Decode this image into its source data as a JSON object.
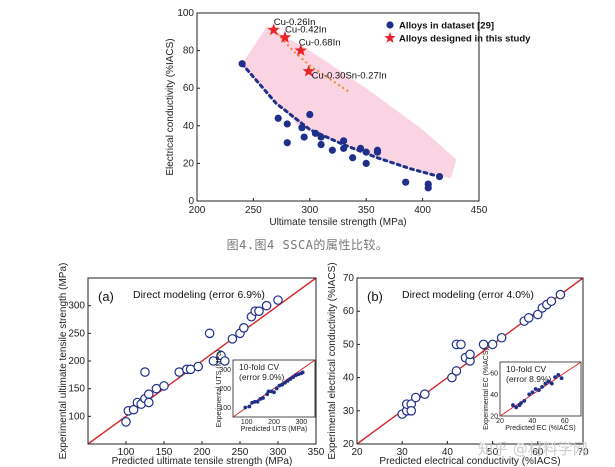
{
  "caption": "图4.图4 SSCA的属性比较。",
  "watermark": "知乎 @材料学网",
  "colors": {
    "dataset": "#1f2f8a",
    "designed": "#e8232a",
    "band": "#f9cfe0",
    "trend_top": "#f08a2a",
    "fit_line": "#d9262b",
    "open_marker": "#1f2f8a"
  },
  "chart_data": [
    {
      "id": "top",
      "type": "scatter",
      "xlabel": "Ultimate tensile strength (MPa)",
      "ylabel": "Electrical conductivity (%IACS)",
      "xlim": [
        200,
        450
      ],
      "ylim": [
        0,
        100
      ],
      "xticks": [
        200,
        250,
        300,
        350,
        400,
        450
      ],
      "yticks": [
        0,
        20,
        40,
        60,
        80,
        100
      ],
      "legend": {
        "placement": "top-right",
        "entries": [
          "Alloys in dataset [29]",
          "Alloys designed in this study"
        ]
      },
      "series": [
        {
          "name": "Alloys in dataset [29]",
          "marker": "filled-circle",
          "points": [
            [
              240,
              73
            ],
            [
              272,
              44
            ],
            [
              280,
              41
            ],
            [
              280,
              31
            ],
            [
              293,
              39
            ],
            [
              295,
              34
            ],
            [
              300,
              46
            ],
            [
              305,
              36
            ],
            [
              310,
              30
            ],
            [
              310,
              34
            ],
            [
              320,
              27
            ],
            [
              330,
              32
            ],
            [
              330,
              28
            ],
            [
              338,
              23
            ],
            [
              345,
              28
            ],
            [
              350,
              26
            ],
            [
              350,
              20
            ],
            [
              360,
              27
            ],
            [
              360,
              26
            ],
            [
              385,
              10
            ],
            [
              405,
              9
            ],
            [
              405,
              7
            ],
            [
              415,
              13
            ]
          ]
        },
        {
          "name": "Alloys designed in this study",
          "marker": "star",
          "points": [
            [
              268,
              91
            ],
            [
              278,
              87
            ],
            [
              292,
              80
            ],
            [
              299,
              69
            ]
          ]
        }
      ],
      "annotations": [
        {
          "text": "Cu-0.26In",
          "point": [
            268,
            91
          ]
        },
        {
          "text": "Cu-0.42In",
          "point": [
            278,
            87
          ]
        },
        {
          "text": "Cu-0.68In",
          "point": [
            292,
            80
          ]
        },
        {
          "text": "Cu-0.30Sn-0.27In",
          "point": [
            299,
            69
          ]
        }
      ],
      "band": {
        "upper": [
          [
            262,
            93
          ],
          [
            300,
            80
          ],
          [
            350,
            60
          ],
          [
            400,
            38
          ],
          [
            430,
            22
          ]
        ],
        "lower": [
          [
            240,
            73
          ],
          [
            290,
            40
          ],
          [
            350,
            25
          ],
          [
            400,
            16
          ],
          [
            425,
            12
          ]
        ]
      },
      "trend_dataset": [
        [
          240,
          73
        ],
        [
          270,
          52
        ],
        [
          300,
          38
        ],
        [
          330,
          30
        ],
        [
          360,
          23
        ],
        [
          390,
          17
        ],
        [
          415,
          13
        ]
      ],
      "trend_designed": [
        [
          268,
          91
        ],
        [
          285,
          80
        ],
        [
          300,
          72
        ],
        [
          320,
          64
        ],
        [
          335,
          58
        ]
      ]
    },
    {
      "id": "a",
      "panel_label": "(a)",
      "type": "scatter",
      "title": "Direct modeling (error 6.9%)",
      "xlabel": "Predicted ultimate tensile strength (MPa)",
      "ylabel": "Experimental ultimate tensile strength (MPa)",
      "xlim": [
        50,
        350
      ],
      "ylim": [
        50,
        350
      ],
      "xticks": [
        100,
        150,
        200,
        250,
        300,
        350
      ],
      "yticks": [
        100,
        150,
        200,
        250,
        300
      ],
      "points": [
        [
          100,
          90
        ],
        [
          103,
          110
        ],
        [
          110,
          112
        ],
        [
          115,
          125
        ],
        [
          120,
          122
        ],
        [
          125,
          132
        ],
        [
          125,
          180
        ],
        [
          130,
          140
        ],
        [
          130,
          125
        ],
        [
          140,
          150
        ],
        [
          150,
          155
        ],
        [
          170,
          180
        ],
        [
          180,
          185
        ],
        [
          185,
          185
        ],
        [
          195,
          190
        ],
        [
          210,
          250
        ],
        [
          215,
          200
        ],
        [
          225,
          210
        ],
        [
          230,
          200
        ],
        [
          240,
          240
        ],
        [
          250,
          250
        ],
        [
          255,
          260
        ],
        [
          265,
          280
        ],
        [
          270,
          290
        ],
        [
          275,
          290
        ],
        [
          285,
          300
        ],
        [
          300,
          310
        ]
      ],
      "inset": {
        "title": [
          "10-fold CV",
          "(error 9.0%)"
        ],
        "xlabel": "Predicted UTS (MPa)",
        "ylabel": "Experimental UTS (MPa)",
        "xlim": [
          50,
          350
        ],
        "ylim": [
          50,
          350
        ],
        "xticks": [
          100,
          200,
          300
        ],
        "yticks": [
          100,
          200,
          300
        ],
        "points": [
          [
            95,
            100
          ],
          [
            110,
            105
          ],
          [
            120,
            125
          ],
          [
            130,
            130
          ],
          [
            140,
            130
          ],
          [
            150,
            145
          ],
          [
            160,
            150
          ],
          [
            175,
            170
          ],
          [
            180,
            185
          ],
          [
            190,
            185
          ],
          [
            200,
            180
          ],
          [
            210,
            200
          ],
          [
            220,
            215
          ],
          [
            230,
            220
          ],
          [
            240,
            230
          ],
          [
            250,
            240
          ],
          [
            260,
            250
          ],
          [
            270,
            260
          ],
          [
            280,
            270
          ],
          [
            290,
            275
          ],
          [
            300,
            280
          ],
          [
            305,
            285
          ]
        ]
      }
    },
    {
      "id": "b",
      "panel_label": "(b)",
      "type": "scatter",
      "title": "Direct modeling (error 4.0%)",
      "xlabel": "Predicted electrical conductivity (%IACS)",
      "ylabel": "Experimental electrical conductivity (%IACS)",
      "xlim": [
        20,
        70
      ],
      "ylim": [
        20,
        70
      ],
      "xticks": [
        20,
        30,
        40,
        50,
        60,
        70
      ],
      "yticks": [
        20,
        30,
        40,
        50,
        60,
        70
      ],
      "points": [
        [
          30,
          29
        ],
        [
          31,
          30
        ],
        [
          31,
          32
        ],
        [
          32,
          32
        ],
        [
          32,
          30
        ],
        [
          33,
          34
        ],
        [
          35,
          35
        ],
        [
          41,
          40
        ],
        [
          42,
          42
        ],
        [
          42,
          50
        ],
        [
          43,
          50
        ],
        [
          44,
          46
        ],
        [
          45,
          45
        ],
        [
          45,
          47
        ],
        [
          48,
          50
        ],
        [
          50,
          50
        ],
        [
          52,
          52
        ],
        [
          57,
          57
        ],
        [
          58,
          58
        ],
        [
          60,
          59
        ],
        [
          61,
          61
        ],
        [
          62,
          62
        ],
        [
          63,
          63
        ],
        [
          65,
          65
        ]
      ],
      "inset": {
        "title": [
          "10-fold CV",
          "(error 8.9%)"
        ],
        "xlabel": "Predicted EC (%IACS)",
        "ylabel": "Experimental EC (%IACS)",
        "xlim": [
          20,
          70
        ],
        "ylim": [
          20,
          70
        ],
        "xticks": [
          20,
          40,
          60
        ],
        "yticks": [
          20,
          40,
          60
        ],
        "points": [
          [
            28,
            30
          ],
          [
            30,
            28
          ],
          [
            32,
            30
          ],
          [
            33,
            32
          ],
          [
            35,
            34
          ],
          [
            38,
            40
          ],
          [
            40,
            42
          ],
          [
            42,
            45
          ],
          [
            44,
            44
          ],
          [
            46,
            47
          ],
          [
            48,
            50
          ],
          [
            50,
            52
          ],
          [
            52,
            50
          ],
          [
            54,
            56
          ],
          [
            56,
            58
          ],
          [
            58,
            55
          ]
        ]
      }
    }
  ]
}
